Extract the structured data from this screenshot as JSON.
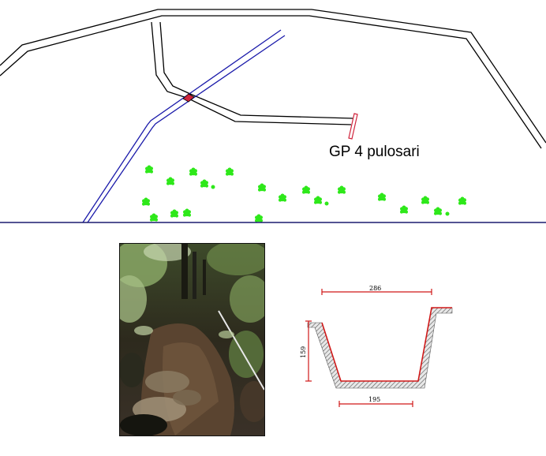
{
  "map": {
    "location_label": "GP 4 pulosari",
    "colors": {
      "road": "#000000",
      "channel": "#1a1aaa",
      "crossing_marker": "#d0243c",
      "vegetation": "#2ee81a",
      "baseline": "#1a1a6e"
    },
    "vegetation_icon": "green-shrub-icon"
  },
  "section": {
    "top_width": "286",
    "bottom_width": "195",
    "depth": "159",
    "colors": {
      "lining": "#d01818",
      "hatch": "#555555"
    }
  },
  "photo": {
    "subject": "earth drainage channel with vegetation"
  }
}
